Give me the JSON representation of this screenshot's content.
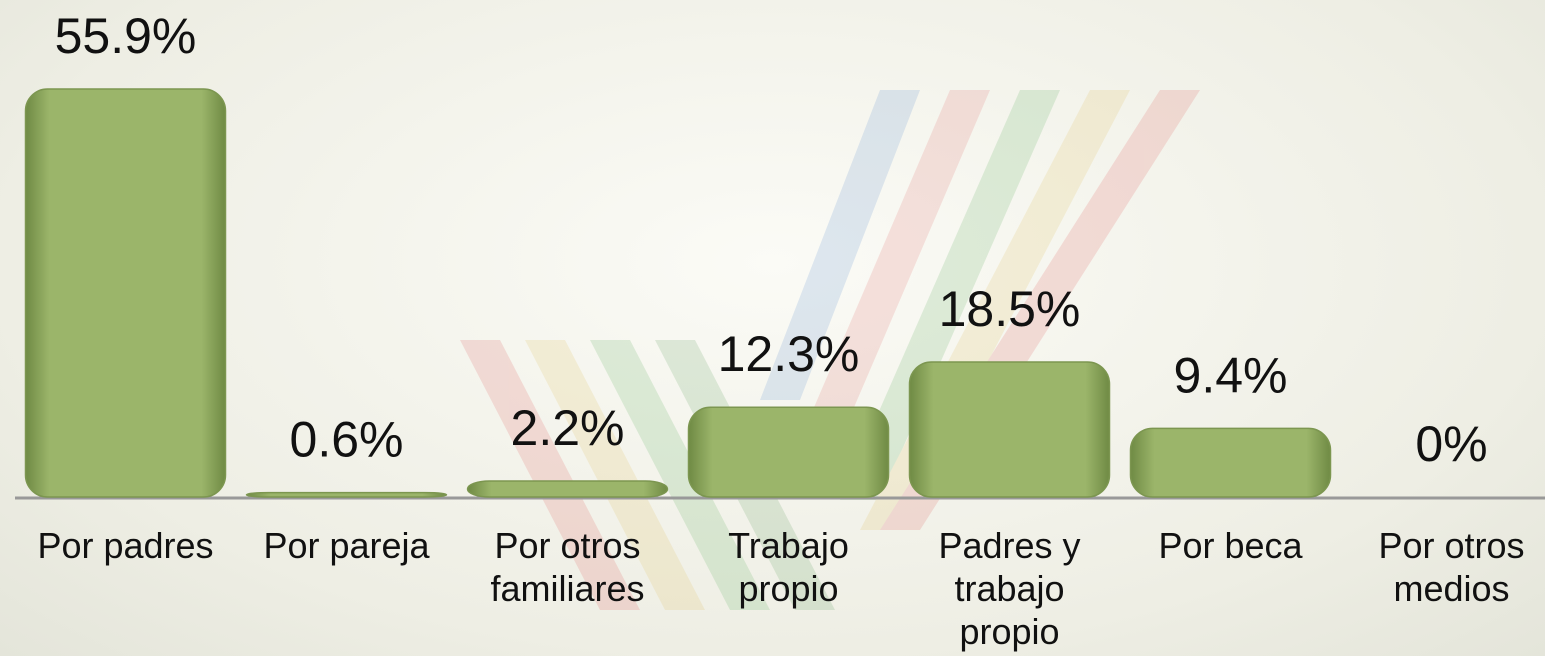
{
  "chart_data": {
    "type": "bar",
    "categories": [
      "Por padres",
      "Por pareja",
      "Por otros familiares",
      "Trabajo propio",
      "Padres y trabajo propio",
      "Por beca",
      "Por otros medios"
    ],
    "values": [
      55.9,
      0.6,
      2.2,
      12.3,
      18.5,
      9.4,
      0
    ],
    "value_labels": [
      "55.9%",
      "0.6%",
      "2.2%",
      "12.3%",
      "18.5%",
      "9.4%",
      "0%"
    ],
    "color": "#9bb56a"
  }
}
